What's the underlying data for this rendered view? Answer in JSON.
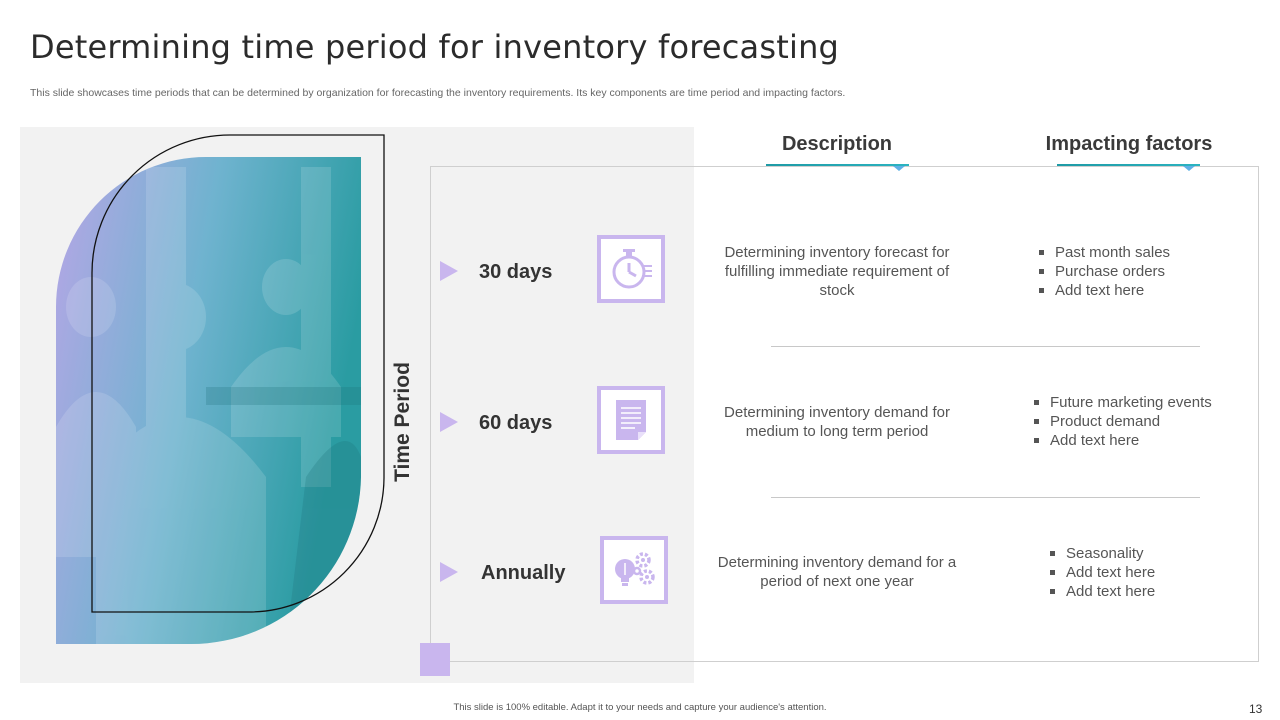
{
  "title": "Determining time period for inventory forecasting",
  "subtitle": "This slide showcases time periods that can be determined by organization for forecasting the inventory requirements. Its key components are time period and impacting factors.",
  "vertical_label": "Time Period",
  "columns": {
    "description": "Description",
    "impacting_factors": "Impacting factors"
  },
  "rows": [
    {
      "period": "30 days",
      "icon": "stopwatch-icon",
      "description": "Determining inventory forecast for fulfilling immediate requirement of stock",
      "factors": [
        "Past month sales",
        "Purchase orders",
        "Add text here"
      ]
    },
    {
      "period": "60 days",
      "icon": "document-icon",
      "description": "Determining inventory demand for medium to long term period",
      "factors": [
        "Future marketing events",
        "Product demand",
        "Add text here"
      ]
    },
    {
      "period": "Annually",
      "icon": "lightbulb-gears-icon",
      "description": "Determining inventory demand for a period of next one year",
      "factors": [
        "Seasonality",
        "Add text here",
        "Add text here"
      ]
    }
  ],
  "footer": "This slide is 100% editable. Adapt it to your needs and capture your audience's attention.",
  "page_number": "13",
  "colors": {
    "accent_lavender": "#c9b6ee",
    "accent_teal": "#1e9aa5",
    "gradient_start": "#b6a6e6",
    "gradient_end": "#2a9ca2"
  }
}
